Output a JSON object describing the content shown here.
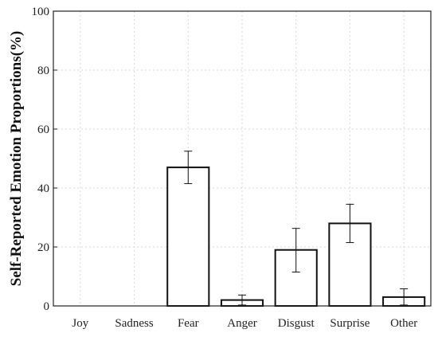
{
  "chart_data": {
    "type": "bar",
    "categories": [
      "Joy",
      "Sadness",
      "Fear",
      "Anger",
      "Disgust",
      "Surprise",
      "Other"
    ],
    "values": [
      0,
      0,
      47,
      2,
      19,
      28,
      3
    ],
    "error_bars": [
      [
        0,
        0
      ],
      [
        0,
        0
      ],
      [
        41.5,
        52.5
      ],
      [
        0.3,
        3.7
      ],
      [
        11.5,
        26.3
      ],
      [
        21.5,
        34.5
      ],
      [
        0.3,
        5.8
      ]
    ],
    "title": "",
    "xlabel": "",
    "ylabel": "Self-Reported Emotion Proportions(%)",
    "ylim": [
      0,
      100
    ],
    "yticks": [
      0,
      20,
      40,
      60,
      80,
      100
    ],
    "grid": true,
    "colors": {
      "bar_fill": "#ffffff",
      "bar_edge": "#111111",
      "grid": "#d9d9d9"
    }
  }
}
